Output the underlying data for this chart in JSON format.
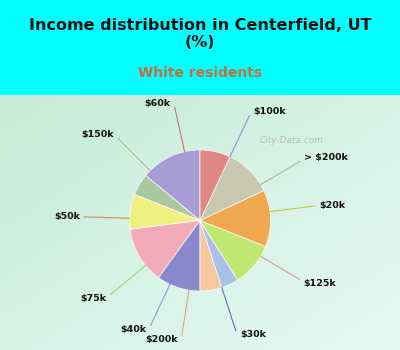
{
  "title": "Income distribution in Centerfield, UT\n(%)",
  "subtitle": "White residents",
  "title_color": "#111111",
  "subtitle_color": "#c0703a",
  "background_color": "#00ffff",
  "chart_bg_color": "#d8f0e8",
  "labels": [
    "$100k",
    "> $200k",
    "$20k",
    "$125k",
    "$30k",
    "$200k",
    "$40k",
    "$75k",
    "$50k",
    "$150k",
    "$60k"
  ],
  "values": [
    14,
    5,
    8,
    13,
    10,
    5,
    4,
    10,
    13,
    11,
    7
  ],
  "colors": [
    "#a89cd4",
    "#aac8a0",
    "#f0f080",
    "#f0aab8",
    "#8888cc",
    "#f5c8a0",
    "#aac0e8",
    "#c0e870",
    "#f0a850",
    "#c8c8b0",
    "#e08888"
  ],
  "startangle": 90,
  "watermark": "City-Data.com"
}
